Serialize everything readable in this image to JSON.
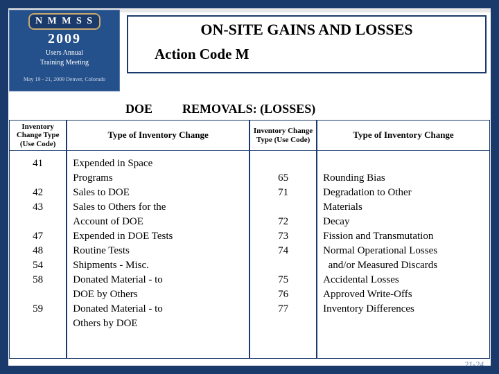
{
  "banner": {
    "logo": "N M M S S",
    "year": "2009",
    "sub1": "Users Annual",
    "sub2": "Training Meeting",
    "date": "May 19 - 21, 2009     Denver, Colorado"
  },
  "title": {
    "line1": "ON-SITE GAINS AND LOSSES",
    "line2": "Action Code M"
  },
  "section": {
    "doe": "DOE",
    "removals": "REMOVALS: (LOSSES)"
  },
  "headers": {
    "code": "Inventory Change Type (Use Code)",
    "type": "Type of Inventory Change"
  },
  "left": {
    "codes": [
      "41",
      "",
      "42",
      "43",
      "",
      "47",
      "48",
      "54",
      "58",
      "",
      "59"
    ],
    "types": [
      "Expended in Space",
      "Programs",
      "Sales to DOE",
      "Sales to Others for the",
      "Account of DOE",
      "Expended in DOE Tests",
      "Routine Tests",
      "Shipments - Misc.",
      "Donated Material - to",
      "DOE by Others",
      "Donated Material - to",
      "Others by DOE"
    ]
  },
  "right": {
    "codes": [
      "",
      "65",
      "71",
      "",
      "72",
      "73",
      "74",
      "",
      "75",
      "76",
      "77"
    ],
    "types": [
      "",
      "Rounding Bias",
      "Degradation to Other",
      "Materials",
      "Decay",
      "Fission and Transmutation",
      "Normal Operational Losses",
      "  and/or Measured Discards",
      "Accidental Losses",
      "Approved Write-Offs",
      "Inventory Differences"
    ]
  },
  "footer": "21-24"
}
